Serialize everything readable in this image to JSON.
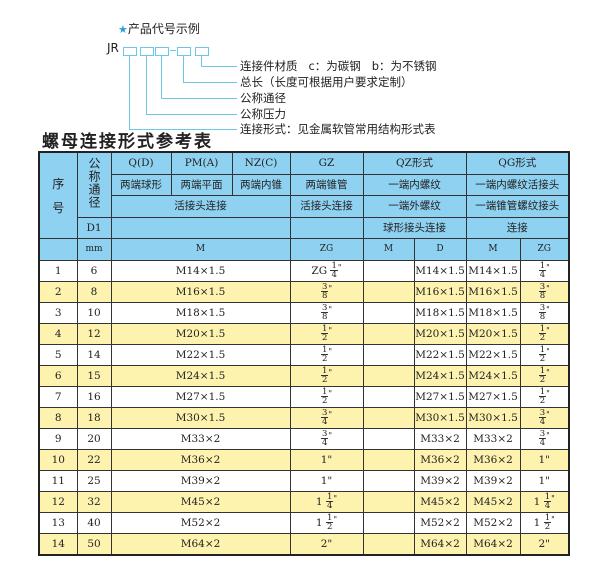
{
  "code_example": {
    "heading": "产品代号示例",
    "star_icon": "star-icon",
    "prefix": "JR",
    "dash": "-",
    "labels": [
      "连接件材质   c：为碳钢   b：为不锈钢",
      "总长（长度可根据用户要求定制）",
      "公称通径",
      "公称压力",
      "连接形式：见金属软管常用结构形式表"
    ]
  },
  "title": "螺母连接形式参考表",
  "colors": {
    "header_bg": "#8fd1f1",
    "alt_row_bg": "#fdf2ae",
    "accent": "#2aa0d8"
  },
  "header": {
    "seq": "序\n\n号",
    "nominal_dia": "公称通径",
    "row1": [
      "Q(D)",
      "PM(A)",
      "NZ(C)",
      "GZ",
      "QZ形式",
      "QG形式"
    ],
    "row2": [
      "两端球形",
      "两端平面",
      "两端内锥",
      "两端锥管",
      "一端内螺纹",
      "一端内螺纹活接头"
    ],
    "row3": [
      "活接头连接",
      "活接头连接",
      "一端外螺纹",
      "一端锥管螺纹接头"
    ],
    "row4": [
      "D1",
      "",
      "",
      "球形接头连接",
      "连接"
    ],
    "row5": [
      "mm",
      "M",
      "ZG",
      "M",
      "D",
      "M",
      "ZG"
    ]
  },
  "rows": [
    {
      "no": "1",
      "d1": "6",
      "m": "M14×1.5",
      "zg": {
        "w": "ZG",
        "n": "1",
        "d": "4",
        "u": "\""
      },
      "qz_m": "",
      "qz_d": "M14×1.5",
      "qg_m": "M14×1.5",
      "qg_zg": {
        "w": "",
        "n": "1",
        "d": "4",
        "u": "\""
      }
    },
    {
      "no": "2",
      "d1": "8",
      "m": "M16×1.5",
      "zg": {
        "w": "",
        "n": "3",
        "d": "8",
        "u": "\""
      },
      "qz_m": "",
      "qz_d": "M16×1.5",
      "qg_m": "M16×1.5",
      "qg_zg": {
        "w": "",
        "n": "3",
        "d": "8",
        "u": "\""
      }
    },
    {
      "no": "3",
      "d1": "10",
      "m": "M18×1.5",
      "zg": {
        "w": "",
        "n": "3",
        "d": "8",
        "u": "\""
      },
      "qz_m": "",
      "qz_d": "M18×1.5",
      "qg_m": "M18×1.5",
      "qg_zg": {
        "w": "",
        "n": "3",
        "d": "8",
        "u": "\""
      }
    },
    {
      "no": "4",
      "d1": "12",
      "m": "M20×1.5",
      "zg": {
        "w": "",
        "n": "1",
        "d": "2",
        "u": "\""
      },
      "qz_m": "",
      "qz_d": "M20×1.5",
      "qg_m": "M20×1.5",
      "qg_zg": {
        "w": "",
        "n": "1",
        "d": "2",
        "u": "\""
      }
    },
    {
      "no": "5",
      "d1": "14",
      "m": "M22×1.5",
      "zg": {
        "w": "",
        "n": "1",
        "d": "2",
        "u": "\""
      },
      "qz_m": "",
      "qz_d": "M22×1.5",
      "qg_m": "M22×1.5",
      "qg_zg": {
        "w": "",
        "n": "1",
        "d": "2",
        "u": "\""
      }
    },
    {
      "no": "6",
      "d1": "15",
      "m": "M24×1.5",
      "zg": {
        "w": "",
        "n": "1",
        "d": "2",
        "u": "\""
      },
      "qz_m": "",
      "qz_d": "M24×1.5",
      "qg_m": "M24×1.5",
      "qg_zg": {
        "w": "",
        "n": "1",
        "d": "2",
        "u": "\""
      }
    },
    {
      "no": "7",
      "d1": "16",
      "m": "M27×1.5",
      "zg": {
        "w": "",
        "n": "1",
        "d": "2",
        "u": "\""
      },
      "qz_m": "",
      "qz_d": "M27×1.5",
      "qg_m": "M27×1.5",
      "qg_zg": {
        "w": "",
        "n": "1",
        "d": "2",
        "u": "\""
      }
    },
    {
      "no": "8",
      "d1": "18",
      "m": "M30×1.5",
      "zg": {
        "w": "",
        "n": "3",
        "d": "4",
        "u": "\""
      },
      "qz_m": "",
      "qz_d": "M30×1.5",
      "qg_m": "M30×1.5",
      "qg_zg": {
        "w": "",
        "n": "3",
        "d": "4",
        "u": "\""
      }
    },
    {
      "no": "9",
      "d1": "20",
      "m": "M33×2",
      "zg": {
        "w": "",
        "n": "3",
        "d": "4",
        "u": "\""
      },
      "qz_m": "",
      "qz_d": "M33×2",
      "qg_m": "M33×2",
      "qg_zg": {
        "w": "",
        "n": "3",
        "d": "4",
        "u": "\""
      }
    },
    {
      "no": "10",
      "d1": "22",
      "m": "M36×2",
      "zg": {
        "w": "1\"",
        "n": "",
        "d": "",
        "u": ""
      },
      "qz_m": "",
      "qz_d": "M36×2",
      "qg_m": "M36×2",
      "qg_zg": {
        "w": "1\"",
        "n": "",
        "d": "",
        "u": ""
      }
    },
    {
      "no": "11",
      "d1": "25",
      "m": "M39×2",
      "zg": {
        "w": "1\"",
        "n": "",
        "d": "",
        "u": ""
      },
      "qz_m": "",
      "qz_d": "M39×2",
      "qg_m": "M39×2",
      "qg_zg": {
        "w": "1\"",
        "n": "",
        "d": "",
        "u": ""
      }
    },
    {
      "no": "12",
      "d1": "32",
      "m": "M45×2",
      "zg": {
        "w": "1",
        "n": "1",
        "d": "4",
        "u": "\""
      },
      "qz_m": "",
      "qz_d": "M45×2",
      "qg_m": "M45×2",
      "qg_zg": {
        "w": "1",
        "n": "1",
        "d": "4",
        "u": "\""
      }
    },
    {
      "no": "13",
      "d1": "40",
      "m": "M52×2",
      "zg": {
        "w": "1",
        "n": "1",
        "d": "2",
        "u": "\""
      },
      "qz_m": "",
      "qz_d": "M52×2",
      "qg_m": "M52×2",
      "qg_zg": {
        "w": "1",
        "n": "1",
        "d": "2",
        "u": "\""
      }
    },
    {
      "no": "14",
      "d1": "50",
      "m": "M64×2",
      "zg": {
        "w": "2\"",
        "n": "",
        "d": "",
        "u": ""
      },
      "qz_m": "",
      "qz_d": "M64×2",
      "qg_m": "M64×2",
      "qg_zg": {
        "w": "2\"",
        "n": "",
        "d": "",
        "u": ""
      }
    }
  ]
}
